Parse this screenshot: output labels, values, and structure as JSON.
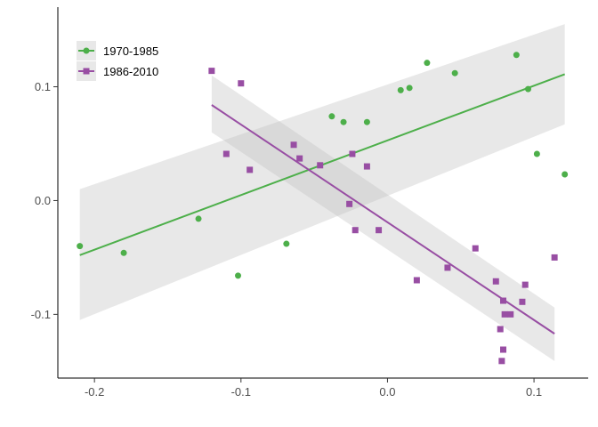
{
  "chart_data": {
    "type": "scatter",
    "title": "",
    "xlabel": "",
    "ylabel": "",
    "xlim": [
      -0.225,
      0.137
    ],
    "ylim": [
      -0.156,
      0.17
    ],
    "x_ticks": [
      -0.2,
      -0.1,
      0.0,
      0.1
    ],
    "x_tick_labels": [
      "-0.2",
      "-0.1",
      "0.0",
      "0.1"
    ],
    "y_ticks": [
      -0.1,
      0.0,
      0.1
    ],
    "y_tick_labels": [
      "-0.1",
      "0.0",
      "0.1"
    ],
    "grid": false,
    "legend_position": "top-left",
    "series": [
      {
        "name": "1970-1985",
        "color": "#4daf4a",
        "marker": "circle",
        "points": [
          [
            -0.21,
            -0.04
          ],
          [
            -0.18,
            -0.046
          ],
          [
            -0.129,
            -0.016
          ],
          [
            -0.102,
            -0.066
          ],
          [
            -0.069,
            -0.038
          ],
          [
            -0.038,
            0.074
          ],
          [
            -0.03,
            0.069
          ],
          [
            -0.014,
            0.069
          ],
          [
            0.009,
            0.097
          ],
          [
            0.015,
            0.099
          ],
          [
            0.027,
            0.121
          ],
          [
            0.046,
            0.112
          ],
          [
            0.088,
            0.128
          ],
          [
            0.096,
            0.098
          ],
          [
            0.102,
            0.041
          ],
          [
            0.121,
            0.023
          ]
        ],
        "fit": {
          "x_range": [
            -0.21,
            0.121
          ],
          "y_range": [
            -0.048,
            0.111
          ],
          "band_lower": [
            -0.105,
            0.067
          ],
          "band_upper": [
            0.01,
            0.155
          ]
        }
      },
      {
        "name": "1986-2010",
        "color": "#984ea3",
        "marker": "square",
        "points": [
          [
            -0.12,
            0.114
          ],
          [
            -0.11,
            0.041
          ],
          [
            -0.1,
            0.103
          ],
          [
            -0.094,
            0.027
          ],
          [
            -0.064,
            0.049
          ],
          [
            -0.06,
            0.037
          ],
          [
            -0.046,
            0.031
          ],
          [
            -0.026,
            -0.003
          ],
          [
            -0.024,
            0.041
          ],
          [
            -0.022,
            -0.026
          ],
          [
            -0.014,
            0.03
          ],
          [
            -0.006,
            -0.026
          ],
          [
            0.02,
            -0.07
          ],
          [
            0.041,
            -0.059
          ],
          [
            0.06,
            -0.042
          ],
          [
            0.074,
            -0.071
          ],
          [
            0.077,
            -0.113
          ],
          [
            0.079,
            -0.088
          ],
          [
            0.079,
            -0.131
          ],
          [
            0.078,
            -0.141
          ],
          [
            0.08,
            -0.1
          ],
          [
            0.084,
            -0.1
          ],
          [
            0.092,
            -0.089
          ],
          [
            0.094,
            -0.074
          ],
          [
            0.114,
            -0.05
          ]
        ],
        "fit": {
          "x_range": [
            -0.12,
            0.114
          ],
          "y_range": [
            0.084,
            -0.117
          ],
          "band_lower": [
            0.06,
            -0.141
          ],
          "band_upper": [
            0.11,
            -0.094
          ]
        }
      }
    ]
  }
}
